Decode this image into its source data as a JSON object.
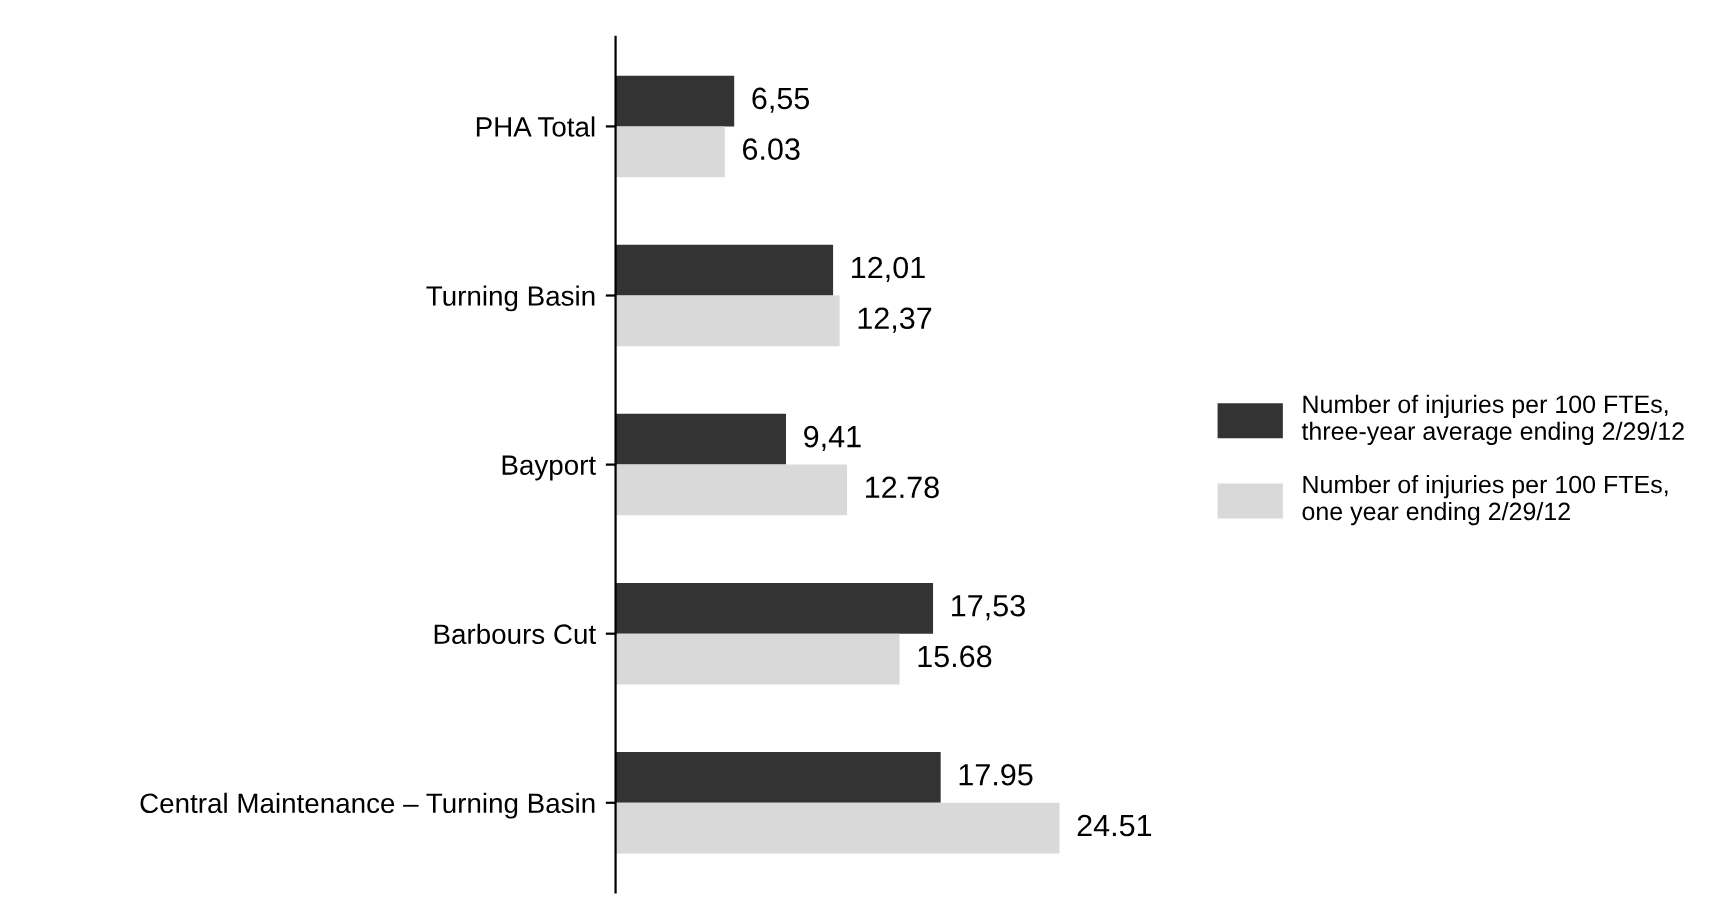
{
  "chart_data": {
    "type": "bar",
    "orientation": "horizontal",
    "categories": [
      "PHA Total",
      "Turning Basin",
      "Bayport",
      "Barbours Cut",
      "Central Maintenance – Turning Basin"
    ],
    "series": [
      {
        "name": "Number of injuries per 100 FTEs,\nthree-year average ending 2/29/12",
        "color": "#333333",
        "values": [
          6.55,
          12.01,
          9.41,
          17.53,
          17.95
        ],
        "value_labels": [
          "6,55",
          "12,01",
          "9,41",
          "17,53",
          "17.95"
        ]
      },
      {
        "name": "Number of injuries per 100 FTEs,\none year ending 2/29/12",
        "color": "#d9d9d9",
        "values": [
          6.03,
          12.37,
          12.78,
          15.68,
          24.51
        ],
        "value_labels": [
          "6.03",
          "12,37",
          "12.78",
          "15.68",
          "24.51"
        ]
      }
    ],
    "legend": "right",
    "grid": false
  }
}
